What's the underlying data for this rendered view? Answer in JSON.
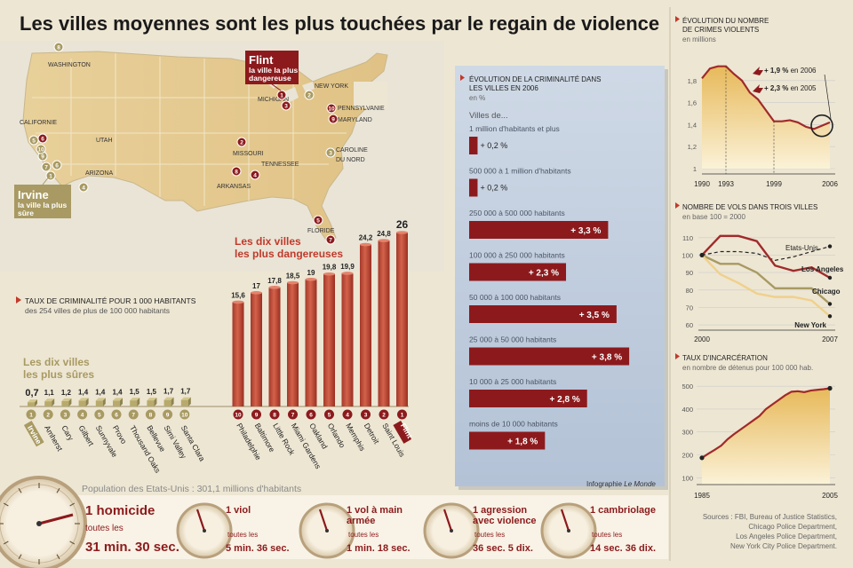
{
  "headline": "Les villes moyennes sont les plus touchées par le regain de violence",
  "map": {
    "labels": [
      "WASHINGTON",
      "CALIFORNIE",
      "UTAH",
      "ARIZONA",
      "MISSOURI",
      "TENNESSEE",
      "ARKANSAS",
      "MICHIGAN",
      "NEW YORK",
      "PENNSYLVANIE",
      "MARYLAND",
      "CAROLINE",
      "DU NORD",
      "FLORIDE"
    ],
    "flint_title": "Flint",
    "flint_sub": [
      "la ville la plus",
      "dangereuse"
    ],
    "irvine_title": "Irvine",
    "irvine_sub": [
      "la ville la plus",
      "sûre"
    ],
    "dangerous_markers": [
      "1",
      "3",
      "2",
      "4",
      "8",
      "9",
      "10",
      "5",
      "6",
      "7"
    ],
    "safe_markers": [
      "1",
      "2",
      "3",
      "4",
      "5",
      "6",
      "7",
      "8",
      "9",
      "10"
    ]
  },
  "colors": {
    "danger": "#8c1a1c",
    "bar": "#c64a34",
    "safe": "#a89a62",
    "title": "#c03a2b",
    "gold": "#d8b664",
    "line_dark": "#a02a2a"
  },
  "crime_rate": {
    "title": "TAUX DE CRIMINALITÉ POUR 1 000 HABITANTS",
    "subtitle": "des 254 villes de plus de 100 000 habitants",
    "dangerous_title": [
      "Les dix villes",
      "les plus dangereuses"
    ],
    "safe_title": [
      "Les dix villes",
      "les plus sûres"
    ]
  },
  "boxes": {
    "label_prefix": "Villes de..."
  },
  "clock_panel": {
    "population": "Population des Etats-Unis : 301,1 millions d'habitants",
    "items": [
      {
        "title": [
          "1 homicide"
        ],
        "every": "toutes les",
        "time": "31 min. 30 sec."
      },
      {
        "title": [
          "1 viol"
        ],
        "every": "toutes les",
        "time": "5 min. 36 sec."
      },
      {
        "title": [
          "1 vol à main",
          "armée"
        ],
        "every": "toutes les",
        "time": "1 min. 18 sec."
      },
      {
        "title": [
          "1 agression",
          "avec violence"
        ],
        "every": "toutes les",
        "time": "36 sec. 5 dix."
      },
      {
        "title": [
          "1 cambriolage"
        ],
        "every": "toutes les",
        "time": "14 sec. 36 dix."
      }
    ]
  },
  "credit": {
    "prefix": "Infographie ",
    "name": "Le Monde"
  },
  "sources": [
    "Sources : FBI, Bureau of Justice Statistics,",
    "Chicago Police Department,",
    "Los Angeles Police Department,",
    "New York City Police Department."
  ],
  "chart_data": [
    {
      "type": "bar",
      "title": "",
      "categories": [
        "Philadelphie",
        "Baltimore",
        "Little Rock",
        "Miami Gardens",
        "Oakland",
        "Orlando",
        "Memphis",
        "Detroit",
        "Saint Louis",
        "Flint"
      ],
      "ranks": [
        "10",
        "9",
        "8",
        "7",
        "6",
        "5",
        "4",
        "3",
        "2",
        "1"
      ],
      "values": [
        15.6,
        17,
        17.8,
        18.5,
        19,
        19.8,
        19.9,
        24.2,
        24.8,
        26
      ],
      "labels": [
        "15,6",
        "17",
        "17,8",
        "18,5",
        "19",
        "19,8",
        "19,9",
        "24,2",
        "24,8",
        "26"
      ],
      "ylim": [
        0,
        26
      ]
    },
    {
      "type": "bar",
      "title": "",
      "categories": [
        "Irvine",
        "Amherst",
        "Cary",
        "Gilbert",
        "Sunnyvale",
        "Provo",
        "Thousand Oaks",
        "Bellevue",
        "Simi Valley",
        "Santa Clara"
      ],
      "ranks": [
        "1",
        "2",
        "3",
        "4",
        "5",
        "6",
        "7",
        "8",
        "9",
        "10"
      ],
      "values": [
        0.7,
        1.1,
        1.2,
        1.4,
        1.4,
        1.4,
        1.5,
        1.5,
        1.7,
        1.7
      ],
      "labels": [
        "0,7",
        "1,1",
        "1,2",
        "1,4",
        "1,4",
        "1,4",
        "1,5",
        "1,5",
        "1,7",
        "1,7"
      ]
    },
    {
      "type": "bar",
      "title": "ÉVOLUTION DE LA CRIMINALITÉ DANS LES VILLES EN 2006",
      "unit": "en %",
      "categories": [
        "1 million d'habitants et plus",
        "500 000 à 1 million d'habitants",
        "250 000 à 500 000 habitants",
        "100 000 à 250 000 habitants",
        "50 000 à 100 000 habitants",
        "25 000 à 50 000 habitants",
        "10 000 à 25 000 habitants",
        "moins de 10 000 habitants"
      ],
      "values": [
        0.2,
        0.2,
        3.3,
        2.3,
        3.5,
        3.8,
        2.8,
        1.8
      ],
      "labels": [
        "+ 0,2 %",
        "+ 0,2 %",
        "+ 3,3 %",
        "+ 2,3 %",
        "+ 3,5 %",
        "+ 3,8 %",
        "+ 2,8 %",
        "+ 1,8 %"
      ]
    },
    {
      "type": "area",
      "title": "ÉVOLUTION DU NOMBRE DE CRIMES VIOLENTS",
      "unit": "en millions",
      "x": [
        1990,
        1991,
        1992,
        1993,
        1994,
        1995,
        1996,
        1997,
        1998,
        1999,
        2000,
        2001,
        2002,
        2003,
        2004,
        2005,
        2006
      ],
      "y": [
        1.82,
        1.91,
        1.93,
        1.93,
        1.86,
        1.8,
        1.69,
        1.63,
        1.53,
        1.43,
        1.43,
        1.44,
        1.42,
        1.38,
        1.36,
        1.39,
        1.42
      ],
      "xticks": [
        "1990",
        "1993",
        "1999",
        "2006"
      ],
      "yticks": [
        "1",
        "1,2",
        "1,4",
        "1,6",
        "1,8"
      ],
      "ylim": [
        1,
        2
      ],
      "annotations": [
        {
          "value": "+ 1,9 %",
          "year": "en 2006"
        },
        {
          "value": "+ 2,3 %",
          "year": "en 2005"
        }
      ]
    },
    {
      "type": "line",
      "title": "NOMBRE DE VOLS DANS TROIS VILLES",
      "subtitle": "en base 100 = 2000",
      "x": [
        2000,
        2001,
        2002,
        2003,
        2004,
        2005,
        2006,
        2007
      ],
      "xticks": [
        "2000",
        "2007"
      ],
      "yticks": [
        "60",
        "70",
        "80",
        "90",
        "100",
        "110"
      ],
      "ylim": [
        57,
        117
      ],
      "series": [
        {
          "name": "Etats-Unis",
          "values": [
            100,
            102,
            102,
            101,
            97,
            99,
            102,
            105
          ]
        },
        {
          "name": "Los Angeles",
          "values": [
            100,
            111,
            111,
            108,
            94,
            91,
            93,
            87
          ]
        },
        {
          "name": "Chicago",
          "values": [
            100,
            95,
            95,
            90,
            81,
            81,
            81,
            72
          ]
        },
        {
          "name": "New York",
          "values": [
            100,
            89,
            84,
            78,
            76,
            76,
            74,
            65
          ]
        }
      ]
    },
    {
      "type": "area",
      "title": "TAUX D'INCARCÉRATION",
      "subtitle": "en nombre de détenus pour 100 000 hab.",
      "x": [
        1985,
        1986,
        1987,
        1988,
        1989,
        1990,
        1991,
        1992,
        1993,
        1994,
        1995,
        1996,
        1997,
        1998,
        1999,
        2000,
        2001,
        2002,
        2003,
        2004,
        2005
      ],
      "y": [
        187,
        205,
        222,
        240,
        268,
        290,
        310,
        330,
        350,
        370,
        400,
        420,
        440,
        460,
        476,
        478,
        474,
        481,
        484,
        487,
        491
      ],
      "xticks": [
        "1985",
        "2005"
      ],
      "yticks": [
        "100",
        "200",
        "300",
        "400",
        "500"
      ],
      "ylim": [
        70,
        520
      ]
    }
  ]
}
